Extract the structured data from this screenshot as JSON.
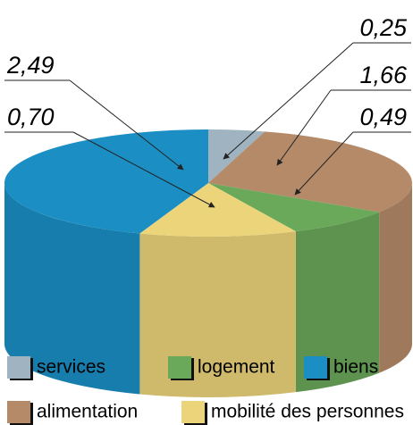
{
  "chart_data": {
    "type": "pie",
    "categories": [
      "services",
      "alimentation",
      "logement",
      "mobilité des personnes",
      "biens"
    ],
    "values": [
      0.25,
      1.66,
      0.49,
      0.7,
      2.49
    ],
    "value_labels": [
      "0,25",
      "1,66",
      "0,49",
      "0,70",
      "2,49"
    ],
    "colors": [
      "#9fb3c0",
      "#b48a68",
      "#6aa85a",
      "#ecd47a",
      "#1b8fc4"
    ]
  }
}
